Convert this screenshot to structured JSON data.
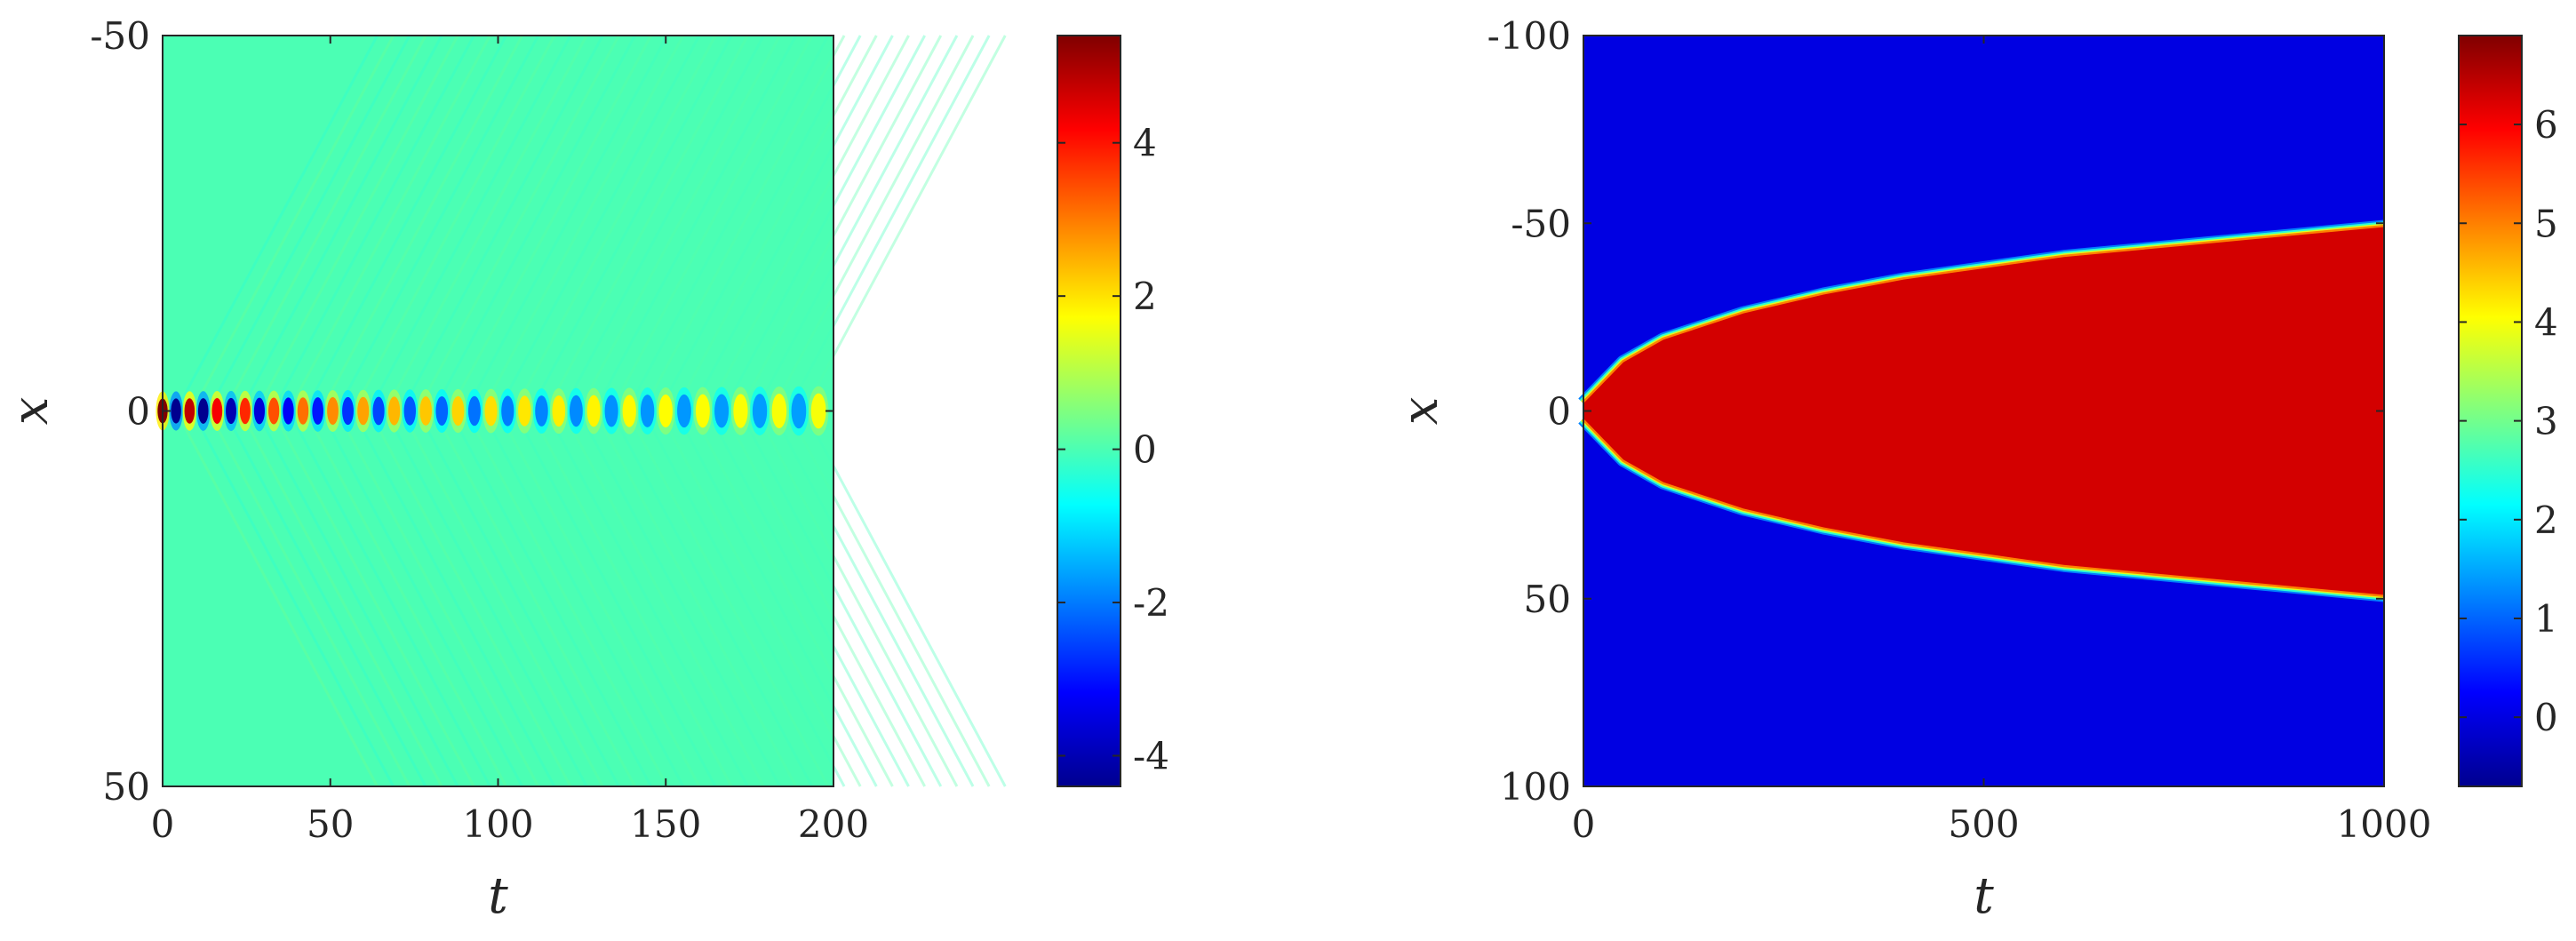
{
  "chart_data": [
    {
      "type": "heatmap",
      "xlabel": "t",
      "ylabel": "x",
      "xlim": [
        0,
        200
      ],
      "ylim": [
        -50,
        50
      ],
      "y_direction": "reversed",
      "x_ticks": [
        0,
        50,
        100,
        150,
        200
      ],
      "y_ticks": [
        -50,
        0,
        50
      ],
      "x_tick_labels": [
        "0",
        "50",
        "100",
        "150",
        "200"
      ],
      "y_tick_labels": [
        "-50",
        "0",
        "50"
      ],
      "colormap": "jet",
      "colorbar": {
        "min": -4.4,
        "max": 5.4,
        "ticks": [
          -4,
          -2,
          0,
          2,
          4
        ],
        "tick_labels": [
          "-4",
          "-2",
          "0",
          "2",
          "4"
        ]
      },
      "background_value": 0,
      "pattern": {
        "description_value": "oscillating localized mode at x = 0 decaying in amplitude with radiation",
        "center_x": 0,
        "initial_amplitude": 5.4,
        "late_amplitude": 1.6,
        "period_start": 8,
        "period_end": 12
      }
    },
    {
      "type": "heatmap",
      "xlabel": "t",
      "ylabel": "x",
      "xlim": [
        0,
        1000
      ],
      "ylim": [
        -100,
        100
      ],
      "y_direction": "reversed",
      "x_ticks": [
        0,
        500,
        1000
      ],
      "y_ticks": [
        -100,
        -50,
        0,
        50,
        100
      ],
      "x_tick_labels": [
        "0",
        "500",
        "1000"
      ],
      "y_tick_labels": [
        "-100",
        "-50",
        "0",
        "50",
        "100"
      ],
      "colormap": "jet",
      "colorbar": {
        "min": -0.7,
        "max": 6.9,
        "ticks": [
          0,
          1,
          2,
          3,
          4,
          5,
          6
        ],
        "tick_labels": [
          "0",
          "1",
          "2",
          "3",
          "4",
          "5",
          "6"
        ]
      },
      "background_value": 0,
      "inside_value": 6.28,
      "front": {
        "t": [
          0,
          50,
          100,
          200,
          300,
          400,
          500,
          600,
          700,
          800,
          900,
          1000
        ],
        "upper_x": [
          -2,
          -13,
          -19,
          -26,
          -31,
          -35,
          -38,
          -41,
          -43,
          -45,
          -47,
          -49
        ],
        "lower_x": [
          2,
          13,
          19,
          26,
          31,
          35,
          38,
          41,
          43,
          45,
          47,
          49
        ]
      }
    }
  ]
}
